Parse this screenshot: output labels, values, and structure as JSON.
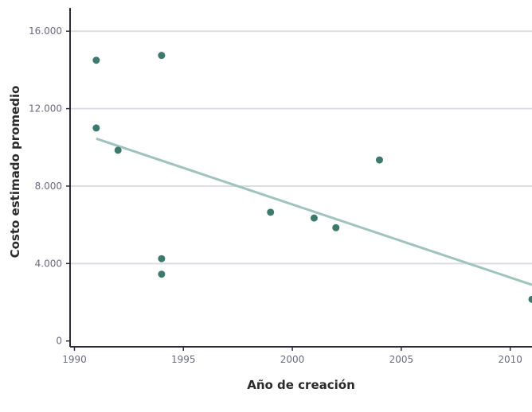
{
  "chart_data": {
    "type": "scatter",
    "title": "",
    "xlabel": "Año de creación",
    "ylabel": "Costo estimado promedio",
    "xlim": [
      1989.8,
      2011
    ],
    "ylim": [
      -300,
      17200
    ],
    "x_ticks": [
      1990,
      1995,
      2000,
      2005,
      2010
    ],
    "x_tick_labels": [
      "1990",
      "1995",
      "2000",
      "2005",
      "2010"
    ],
    "y_ticks": [
      0,
      4000,
      8000,
      12000,
      16000
    ],
    "y_tick_labels": [
      "0",
      "4.000",
      "8.000",
      "12.000",
      "16.000"
    ],
    "grid": "horizontal",
    "points": [
      {
        "x": 1991,
        "y": 14500
      },
      {
        "x": 1991,
        "y": 11000
      },
      {
        "x": 1992,
        "y": 9850
      },
      {
        "x": 1994,
        "y": 14750
      },
      {
        "x": 1994,
        "y": 4250
      },
      {
        "x": 1994,
        "y": 3450
      },
      {
        "x": 1999,
        "y": 6650
      },
      {
        "x": 2001,
        "y": 6350
      },
      {
        "x": 2002,
        "y": 5850
      },
      {
        "x": 2004,
        "y": 9350
      },
      {
        "x": 2011,
        "y": 2150
      }
    ],
    "trend_line": {
      "x": [
        1991,
        2011
      ],
      "y": [
        10450,
        2900
      ]
    },
    "colors": {
      "points": "#3d7a6e",
      "trend": "#9fc4be",
      "grid": "#dcdce6",
      "axis": "#2b2b3a"
    }
  }
}
